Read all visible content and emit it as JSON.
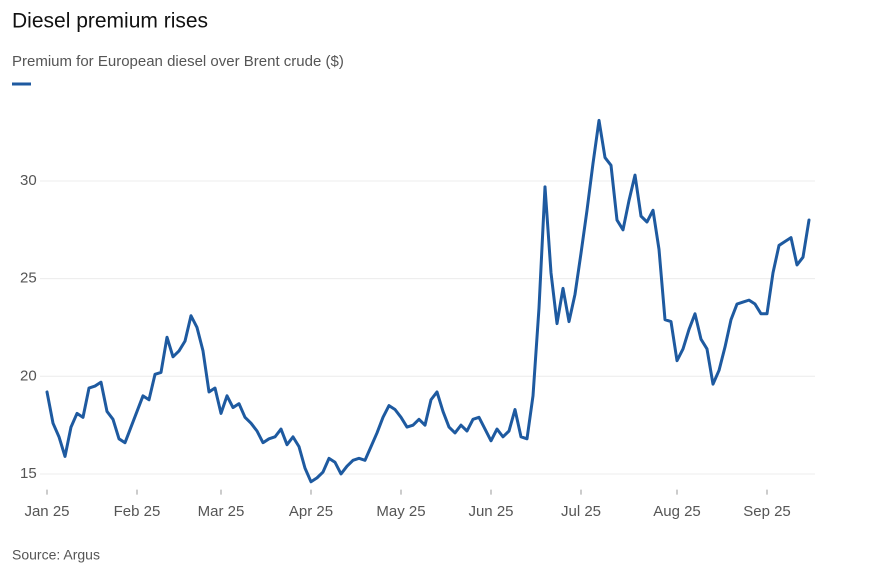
{
  "chart_data": {
    "type": "line",
    "title": "Diesel premium rises",
    "subtitle": "Premium for European diesel over Brent crude ($)",
    "source": "Source: Argus",
    "color": "#1e5aa0",
    "grid": true,
    "ylim": [
      14.2,
      33.7
    ],
    "yticks": [
      15,
      20,
      25,
      30
    ],
    "categories": [
      "Jan 25",
      null,
      null,
      null,
      null,
      null,
      null,
      null,
      null,
      null,
      null,
      null,
      null,
      null,
      null,
      "Feb 25",
      null,
      null,
      null,
      null,
      null,
      null,
      null,
      null,
      null,
      null,
      null,
      null,
      null,
      "Mar 25",
      null,
      null,
      null,
      null,
      null,
      null,
      null,
      null,
      null,
      null,
      null,
      null,
      null,
      null,
      "Apr 25",
      null,
      null,
      null,
      null,
      null,
      null,
      null,
      null,
      null,
      null,
      null,
      null,
      null,
      null,
      "May 25",
      null,
      null,
      null,
      null,
      null,
      null,
      null,
      null,
      null,
      null,
      null,
      null,
      null,
      null,
      "Jun 25",
      null,
      null,
      null,
      null,
      null,
      null,
      null,
      null,
      null,
      null,
      null,
      null,
      null,
      null,
      "Jul 25",
      null,
      null,
      null,
      null,
      null,
      null,
      null,
      null,
      null,
      null,
      null,
      null,
      null,
      null,
      null,
      "Aug 25",
      null,
      null,
      null,
      null,
      null,
      null,
      null,
      null,
      null,
      null,
      null,
      null,
      null,
      null,
      "Sep 25",
      null,
      null,
      null,
      null,
      null,
      null,
      null
    ],
    "values": [
      19.2,
      17.6,
      16.9,
      15.9,
      17.4,
      18.1,
      17.9,
      19.4,
      19.5,
      19.7,
      18.2,
      17.8,
      16.8,
      16.6,
      17.4,
      18.2,
      19.0,
      18.8,
      20.1,
      20.2,
      22.0,
      21.0,
      21.3,
      21.8,
      23.1,
      22.5,
      21.3,
      19.2,
      19.4,
      18.1,
      19.0,
      18.4,
      18.6,
      17.9,
      17.6,
      17.2,
      16.6,
      16.8,
      16.9,
      17.3,
      16.5,
      16.9,
      16.4,
      15.3,
      14.6,
      14.8,
      15.1,
      15.8,
      15.6,
      15.0,
      15.4,
      15.7,
      15.8,
      15.7,
      16.4,
      17.1,
      17.9,
      18.5,
      18.3,
      17.9,
      17.4,
      17.5,
      17.8,
      17.5,
      18.8,
      19.2,
      18.2,
      17.4,
      17.1,
      17.5,
      17.2,
      17.8,
      17.9,
      17.3,
      16.7,
      17.3,
      16.9,
      17.2,
      18.3,
      16.9,
      16.8,
      19.0,
      23.5,
      29.7,
      25.3,
      22.7,
      24.5,
      22.8,
      24.2,
      26.3,
      28.5,
      30.9,
      33.1,
      31.2,
      30.8,
      28.0,
      27.5,
      29.0,
      30.3,
      28.2,
      27.9,
      28.5,
      26.5,
      22.9,
      22.8,
      20.8,
      21.4,
      22.4,
      23.2,
      21.9,
      21.4,
      19.6,
      20.3,
      21.5,
      22.9,
      23.7,
      23.8,
      23.9,
      23.7,
      23.2,
      23.2,
      25.3,
      26.7,
      26.9,
      27.1,
      25.7,
      26.1,
      28.0
    ]
  }
}
